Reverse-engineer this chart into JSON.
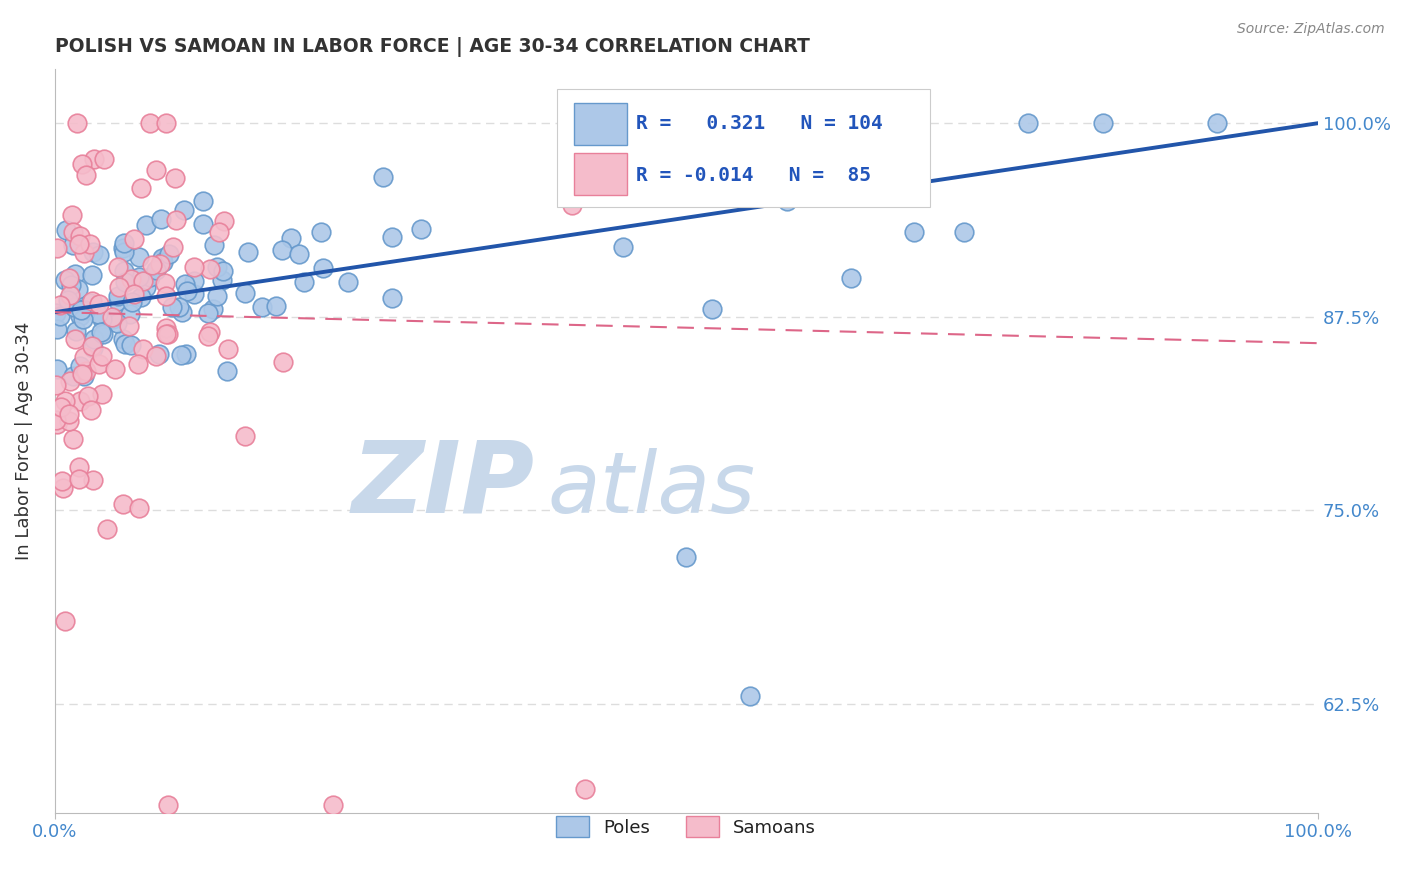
{
  "title": "POLISH VS SAMOAN IN LABOR FORCE | AGE 30-34 CORRELATION CHART",
  "source_text": "Source: ZipAtlas.com",
  "ylabel": "In Labor Force | Age 30-34",
  "xlim": [
    0.0,
    1.0
  ],
  "ylim": [
    0.555,
    1.035
  ],
  "yticks": [
    0.625,
    0.75,
    0.875,
    1.0
  ],
  "ytick_labels": [
    "62.5%",
    "75.0%",
    "87.5%",
    "100.0%"
  ],
  "xtick_labels_ends": [
    "0.0%",
    "100.0%"
  ],
  "poles_R": 0.321,
  "poles_N": 104,
  "samoans_R": -0.014,
  "samoans_N": 85,
  "poles_color": "#adc8e8",
  "poles_edge_color": "#6699cc",
  "samoans_color": "#f5bccb",
  "samoans_edge_color": "#e8809a",
  "trend_poles_color": "#2255aa",
  "trend_samoans_color": "#dd6688",
  "legend_R_color": "#2255bb",
  "watermark_zip_color": "#c8d8ea",
  "watermark_atlas_color": "#c8d8ea",
  "background_color": "#ffffff",
  "grid_color": "#dddddd",
  "title_color": "#333333",
  "axis_label_color": "#333333",
  "tick_label_color": "#4488cc",
  "legend_box_color": "#f0f4f8",
  "legend_border_color": "#cccccc"
}
